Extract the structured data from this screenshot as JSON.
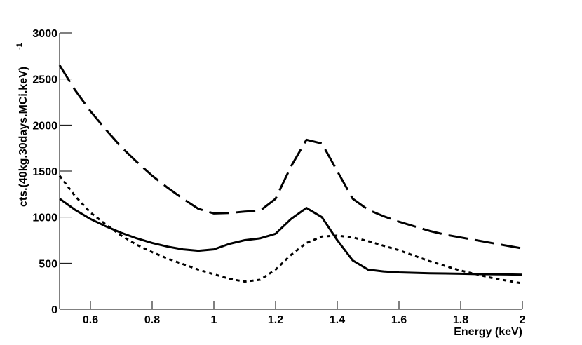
{
  "chart_data": {
    "type": "line",
    "x_label": "Energy (keV)",
    "y_label": "cts.(40kg.30days.MCi.keV)",
    "y_label_sup": "-1",
    "x": [
      0.5,
      0.55,
      0.6,
      0.65,
      0.7,
      0.75,
      0.8,
      0.85,
      0.9,
      0.95,
      1.0,
      1.05,
      1.1,
      1.15,
      1.2,
      1.25,
      1.3,
      1.35,
      1.4,
      1.45,
      1.5,
      1.55,
      1.6,
      1.65,
      1.7,
      1.75,
      1.8,
      1.85,
      1.9,
      1.95,
      2.0
    ],
    "series": [
      {
        "color": "#000000",
        "dash": "solid",
        "values": [
          1200,
          1080,
          980,
          900,
          830,
          770,
          720,
          680,
          650,
          635,
          650,
          710,
          750,
          770,
          820,
          980,
          1100,
          1000,
          750,
          530,
          430,
          410,
          400,
          395,
          390,
          388,
          385,
          382,
          380,
          378,
          375
        ]
      },
      {
        "color": "#000000",
        "dash": "long-dash",
        "values": [
          2650,
          2380,
          2150,
          1950,
          1760,
          1600,
          1450,
          1320,
          1200,
          1090,
          1040,
          1045,
          1060,
          1070,
          1200,
          1550,
          1840,
          1800,
          1500,
          1200,
          1080,
          1010,
          950,
          900,
          850,
          810,
          780,
          750,
          720,
          690,
          660
        ]
      },
      {
        "color": "#000000",
        "dash": "dot",
        "values": [
          1450,
          1230,
          1050,
          920,
          800,
          700,
          620,
          550,
          490,
          430,
          380,
          330,
          300,
          320,
          430,
          590,
          720,
          790,
          800,
          780,
          740,
          690,
          640,
          580,
          520,
          470,
          420,
          380,
          340,
          310,
          280
        ]
      }
    ],
    "xlim": [
      0.5,
      2
    ],
    "xticks": [
      0.6,
      0.8,
      1,
      1.2,
      1.4,
      1.6,
      1.8,
      2
    ],
    "ylim": [
      0,
      3000
    ],
    "yticks": [
      0,
      500,
      1000,
      1500,
      2000,
      2500,
      3000
    ]
  }
}
